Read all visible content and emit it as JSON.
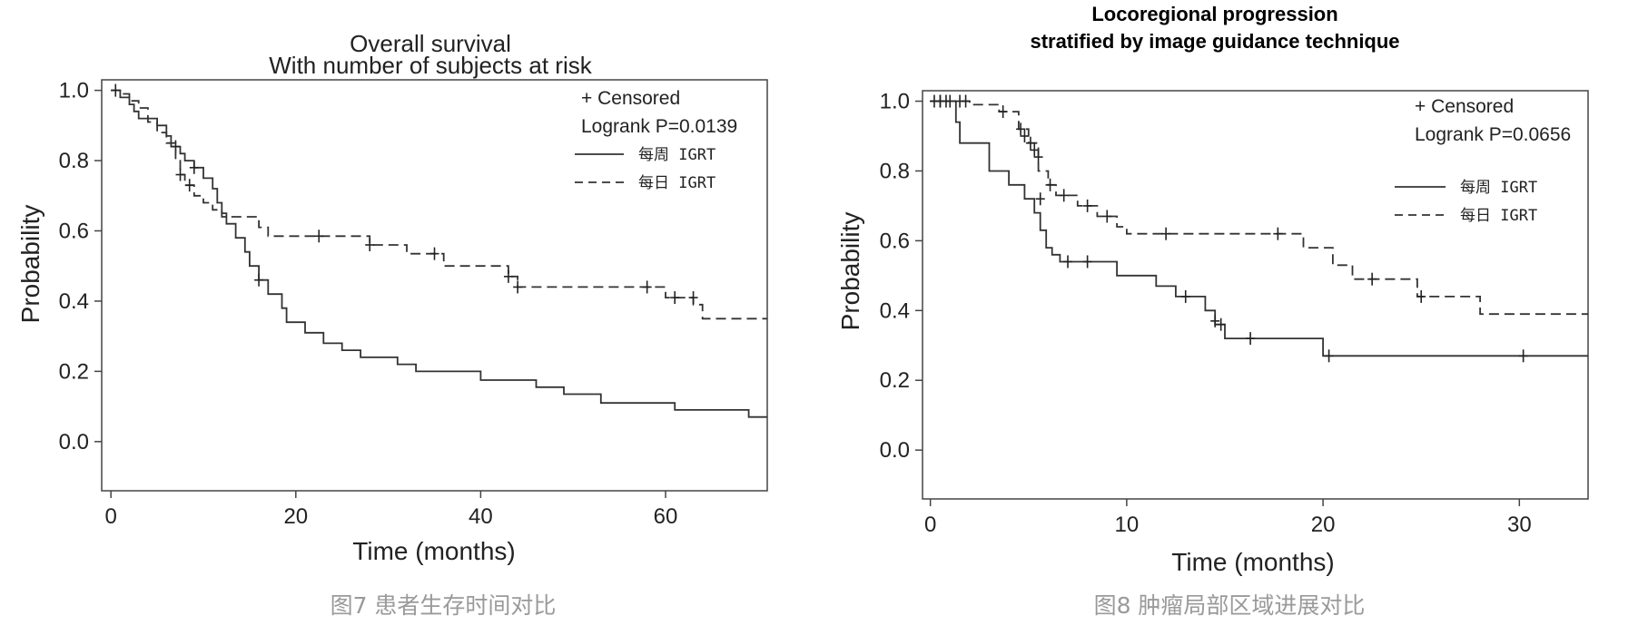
{
  "chart_data": [
    {
      "type": "line",
      "title": "Overall survival",
      "subtitle": "With number of subjects at risk",
      "xlabel": "Time (months)",
      "ylabel": "Probability",
      "xlim": [
        -1,
        71
      ],
      "ylim": [
        -0.14,
        1.03
      ],
      "xticks": [
        0,
        20,
        40,
        60
      ],
      "yticks": [
        "1.0",
        "0.8",
        "0.6",
        "0.4",
        "0.2",
        "0.0"
      ],
      "grid": false,
      "legend_position": "top-right",
      "legend_lines": [
        "+ Censored",
        "Logrank P=0.0139"
      ],
      "caption": "图7 患者生存时间对比",
      "series": [
        {
          "name": "每周 IGRT",
          "style": "solid",
          "steps": [
            [
              0,
              1.0
            ],
            [
              1,
              0.98
            ],
            [
              2,
              0.96
            ],
            [
              2.5,
              0.94
            ],
            [
              3,
              0.92
            ],
            [
              5,
              0.9
            ],
            [
              6,
              0.87
            ],
            [
              6.5,
              0.84
            ],
            [
              7.5,
              0.82
            ],
            [
              8,
              0.8
            ],
            [
              9,
              0.78
            ],
            [
              10,
              0.75
            ],
            [
              11,
              0.72
            ],
            [
              11.5,
              0.68
            ],
            [
              12,
              0.65
            ],
            [
              12.5,
              0.62
            ],
            [
              13.5,
              0.58
            ],
            [
              14.5,
              0.54
            ],
            [
              15,
              0.5
            ],
            [
              16,
              0.46
            ],
            [
              17,
              0.42
            ],
            [
              18.5,
              0.38
            ],
            [
              19,
              0.34
            ],
            [
              21,
              0.31
            ],
            [
              23,
              0.28
            ],
            [
              25,
              0.26
            ],
            [
              27,
              0.24
            ],
            [
              31,
              0.22
            ],
            [
              33,
              0.2
            ],
            [
              40,
              0.175
            ],
            [
              46,
              0.155
            ],
            [
              49,
              0.135
            ],
            [
              53,
              0.11
            ],
            [
              61,
              0.09
            ],
            [
              69,
              0.07
            ],
            [
              71,
              0.07
            ]
          ],
          "censored": [
            [
              7,
              0.84
            ],
            [
              9,
              0.78
            ],
            [
              16,
              0.46
            ]
          ]
        },
        {
          "name": "每日 IGRT",
          "style": "dashed",
          "steps": [
            [
              0,
              1.0
            ],
            [
              1,
              0.99
            ],
            [
              2,
              0.97
            ],
            [
              3,
              0.95
            ],
            [
              4,
              0.91
            ],
            [
              5,
              0.88
            ],
            [
              6,
              0.85
            ],
            [
              7,
              0.8
            ],
            [
              7.5,
              0.76
            ],
            [
              8,
              0.73
            ],
            [
              9,
              0.7
            ],
            [
              10,
              0.68
            ],
            [
              11,
              0.66
            ],
            [
              12,
              0.64
            ],
            [
              16,
              0.61
            ],
            [
              17,
              0.585
            ],
            [
              28,
              0.56
            ],
            [
              32,
              0.535
            ],
            [
              36,
              0.5
            ],
            [
              43,
              0.47
            ],
            [
              44,
              0.44
            ],
            [
              60,
              0.41
            ],
            [
              63,
              0.39
            ],
            [
              64,
              0.35
            ],
            [
              71,
              0.35
            ]
          ],
          "censored": [
            [
              0.5,
              1.0
            ],
            [
              7.5,
              0.76
            ],
            [
              8.5,
              0.73
            ],
            [
              22.5,
              0.585
            ],
            [
              28,
              0.56
            ],
            [
              35,
              0.535
            ],
            [
              43,
              0.47
            ],
            [
              44,
              0.44
            ],
            [
              58,
              0.44
            ],
            [
              61,
              0.41
            ],
            [
              63,
              0.41
            ]
          ]
        }
      ]
    },
    {
      "type": "line",
      "title": "Locoregional progression",
      "subtitle": "stratified by image guidance technique",
      "xlabel": "Time (months)",
      "ylabel": "Probability",
      "xlim": [
        -0.4,
        33.5
      ],
      "ylim": [
        -0.14,
        1.03
      ],
      "xticks": [
        0,
        10,
        20,
        30
      ],
      "yticks": [
        "1.0",
        "0.8",
        "0.6",
        "0.4",
        "0.2",
        "0.0"
      ],
      "grid": false,
      "legend_position": "top-right",
      "legend_lines": [
        "+ Censored",
        "Logrank P=0.0656"
      ],
      "caption": "图8 肿瘤局部区域进展对比",
      "series": [
        {
          "name": "每周 IGRT",
          "style": "solid",
          "steps": [
            [
              0,
              1.0
            ],
            [
              1.3,
              0.94
            ],
            [
              1.5,
              0.88
            ],
            [
              3,
              0.8
            ],
            [
              4,
              0.76
            ],
            [
              4.8,
              0.72
            ],
            [
              5.3,
              0.68
            ],
            [
              5.6,
              0.63
            ],
            [
              5.9,
              0.58
            ],
            [
              6.2,
              0.56
            ],
            [
              6.6,
              0.54
            ],
            [
              9.5,
              0.5
            ],
            [
              11.5,
              0.47
            ],
            [
              12.5,
              0.44
            ],
            [
              14,
              0.4
            ],
            [
              14.5,
              0.36
            ],
            [
              15,
              0.32
            ],
            [
              20,
              0.27
            ],
            [
              33.5,
              0.27
            ]
          ],
          "censored": [
            [
              0.5,
              1.0
            ],
            [
              1.0,
              1.0
            ],
            [
              5.6,
              0.72
            ],
            [
              7,
              0.54
            ],
            [
              8,
              0.54
            ],
            [
              13,
              0.44
            ],
            [
              14.5,
              0.37
            ],
            [
              14.8,
              0.36
            ],
            [
              16.3,
              0.32
            ],
            [
              20.3,
              0.27
            ],
            [
              30.2,
              0.27
            ]
          ]
        },
        {
          "name": "每日 IGRT",
          "style": "dashed",
          "steps": [
            [
              0,
              1.0
            ],
            [
              2,
              0.99
            ],
            [
              3.5,
              0.97
            ],
            [
              4.5,
              0.92
            ],
            [
              5,
              0.88
            ],
            [
              5.5,
              0.8
            ],
            [
              6,
              0.76
            ],
            [
              6.4,
              0.73
            ],
            [
              7.5,
              0.7
            ],
            [
              8.5,
              0.67
            ],
            [
              9.5,
              0.64
            ],
            [
              10,
              0.62
            ],
            [
              19,
              0.58
            ],
            [
              20.5,
              0.53
            ],
            [
              21.5,
              0.49
            ],
            [
              24.8,
              0.44
            ],
            [
              28,
              0.39
            ],
            [
              33.5,
              0.39
            ]
          ],
          "censored": [
            [
              0.2,
              1.0
            ],
            [
              0.5,
              1.0
            ],
            [
              0.8,
              1.0
            ],
            [
              1.5,
              1.0
            ],
            [
              1.8,
              1.0
            ],
            [
              3.7,
              0.97
            ],
            [
              4.6,
              0.92
            ],
            [
              4.8,
              0.9
            ],
            [
              5.1,
              0.88
            ],
            [
              5.3,
              0.86
            ],
            [
              5.5,
              0.84
            ],
            [
              6.1,
              0.76
            ],
            [
              6.8,
              0.73
            ],
            [
              8,
              0.7
            ],
            [
              9,
              0.67
            ],
            [
              12,
              0.62
            ],
            [
              17.7,
              0.62
            ],
            [
              22.5,
              0.49
            ],
            [
              25,
              0.44
            ]
          ]
        }
      ]
    }
  ]
}
